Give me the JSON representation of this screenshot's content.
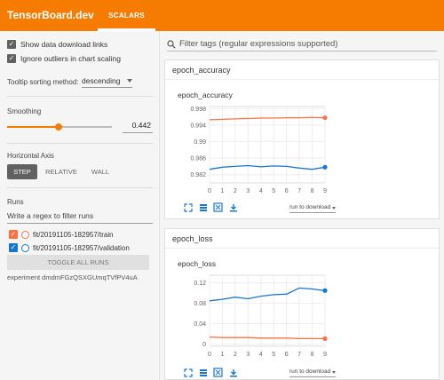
{
  "app": {
    "title": "TensorBoard.dev",
    "active_tab": "SCALARS"
  },
  "sidebar": {
    "show_download_label": "Show data download links",
    "ignore_outliers_label": "Ignore outliers in chart scaling",
    "tooltip_label": "Tooltip sorting method:",
    "tooltip_value": "descending",
    "smoothing_label": "Smoothing",
    "smoothing_value": "0.442",
    "smoothing_fraction": 0.442,
    "horizontal_axis_label": "Horizontal Axis",
    "axis_options": [
      "STEP",
      "RELATIVE",
      "WALL"
    ],
    "axis_selected": "STEP",
    "runs_label": "Runs",
    "runs_filter_placeholder": "Write a regex to filter runs",
    "runs": [
      {
        "name": "fit/20191105-182957/train",
        "color": "#ff7043",
        "checked": true
      },
      {
        "name": "fit/20191105-182957/validation",
        "color": "#1976d2",
        "checked": true
      }
    ],
    "toggle_all_label": "TOGGLE ALL RUNS",
    "experiment": "experiment dmdmFGzQSXGUmqTVfPV4uA"
  },
  "main": {
    "filter_placeholder": "Filter tags (regular expressions supported)",
    "groups": [
      {
        "header": "epoch_accuracy",
        "chart_title": "epoch_accuracy",
        "download_label": "run to download"
      },
      {
        "header": "epoch_loss",
        "chart_title": "epoch_loss",
        "download_label": "run to download"
      }
    ]
  },
  "chart_data": [
    {
      "type": "line",
      "title": "epoch_accuracy",
      "x": [
        0,
        1,
        2,
        3,
        4,
        5,
        6,
        7,
        8,
        9
      ],
      "x_ticks": [
        "0",
        "1",
        "2",
        "3",
        "4",
        "5",
        "6",
        "7",
        "8",
        "9"
      ],
      "y_ticks": [
        "0.998",
        "0.994",
        "0.99",
        "0.986",
        "0.982"
      ],
      "ylim": [
        0.98,
        0.9985
      ],
      "series": [
        {
          "color": "#ff7043",
          "values": [
            0.9953,
            0.9954,
            0.9955,
            0.9956,
            0.9957,
            0.9957,
            0.9958,
            0.9958,
            0.9959,
            0.9958
          ]
        },
        {
          "color": "#1976d2",
          "values": [
            0.9833,
            0.9838,
            0.984,
            0.9842,
            0.9839,
            0.9841,
            0.984,
            0.9836,
            0.9833,
            0.9838
          ]
        }
      ]
    },
    {
      "type": "line",
      "title": "epoch_loss",
      "x": [
        0,
        1,
        2,
        3,
        4,
        5,
        6,
        7,
        8,
        9
      ],
      "x_ticks": [
        "0",
        "1",
        "2",
        "3",
        "4",
        "5",
        "6",
        "7",
        "8",
        "9"
      ],
      "y_ticks": [
        "0.12",
        "0.08",
        "0.04",
        "0"
      ],
      "ylim": [
        -0.004,
        0.135
      ],
      "series": [
        {
          "color": "#ff7043",
          "values": [
            0.014,
            0.013,
            0.013,
            0.013,
            0.012,
            0.012,
            0.012,
            0.011,
            0.011,
            0.011
          ]
        },
        {
          "color": "#1976d2",
          "values": [
            0.085,
            0.088,
            0.092,
            0.089,
            0.094,
            0.097,
            0.098,
            0.11,
            0.108,
            0.105
          ]
        }
      ]
    }
  ]
}
